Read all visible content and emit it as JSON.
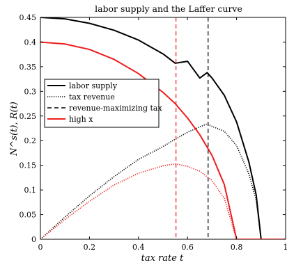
{
  "chart_data": {
    "type": "line",
    "title": "labor supply and the Laffer curve",
    "xlabel": "tax rate t",
    "ylabel": "N^s(t), R(t)",
    "xlim": [
      0,
      1
    ],
    "ylim": [
      0,
      0.45
    ],
    "x_ticks": [
      "0",
      "0.2",
      "0.4",
      "0.6",
      "0.8",
      "1"
    ],
    "y_ticks": [
      "0",
      "0.05",
      "0.1",
      "0.15",
      "0.2",
      "0.25",
      "0.3",
      "0.35",
      "0.4",
      "0.45"
    ],
    "grid": false,
    "legend_position": "middle-left",
    "series": [
      {
        "name": "labor supply",
        "color": "#000000",
        "style": "solid",
        "x": [
          0,
          0.1,
          0.2,
          0.3,
          0.4,
          0.5,
          0.55,
          0.6,
          0.65,
          0.68,
          0.7,
          0.75,
          0.8,
          0.85,
          0.88,
          0.9,
          1.0
        ],
        "y": [
          0.45,
          0.447,
          0.438,
          0.424,
          0.404,
          0.376,
          0.357,
          0.361,
          0.327,
          0.338,
          0.327,
          0.292,
          0.238,
          0.157,
          0.09,
          0,
          0
        ]
      },
      {
        "name": "tax revenue",
        "color": "#000000",
        "style": "dotted",
        "x": [
          0,
          0.1,
          0.2,
          0.3,
          0.4,
          0.5,
          0.55,
          0.6,
          0.65,
          0.68,
          0.7,
          0.75,
          0.8,
          0.85,
          0.88,
          0.9,
          1.0
        ],
        "y": [
          0,
          0.045,
          0.088,
          0.127,
          0.162,
          0.188,
          0.203,
          0.217,
          0.228,
          0.234,
          0.229,
          0.219,
          0.19,
          0.133,
          0.079,
          0,
          0
        ]
      },
      {
        "name": "revenue-maximizing tax",
        "color": "#000000",
        "style": "dashed",
        "vline_x": 0.684
      },
      {
        "name": "high x",
        "color": "#ee1c1c",
        "style": "solid",
        "x": [
          0,
          0.1,
          0.2,
          0.3,
          0.4,
          0.5,
          0.55,
          0.6,
          0.65,
          0.7,
          0.75,
          0.8,
          1.0
        ],
        "y": [
          0.4,
          0.396,
          0.385,
          0.365,
          0.336,
          0.298,
          0.275,
          0.246,
          0.212,
          0.17,
          0.111,
          0,
          0
        ]
      },
      {
        "name": "",
        "color": "#ee1c1c",
        "style": "dotted",
        "x": [
          0,
          0.1,
          0.2,
          0.3,
          0.4,
          0.5,
          0.55,
          0.6,
          0.65,
          0.7,
          0.75,
          0.8,
          1.0
        ],
        "y": [
          0,
          0.04,
          0.077,
          0.11,
          0.134,
          0.149,
          0.153,
          0.148,
          0.138,
          0.119,
          0.083,
          0,
          0
        ]
      },
      {
        "name": "",
        "color": "#ee1c1c",
        "style": "dashed",
        "vline_x": 0.553
      }
    ]
  }
}
